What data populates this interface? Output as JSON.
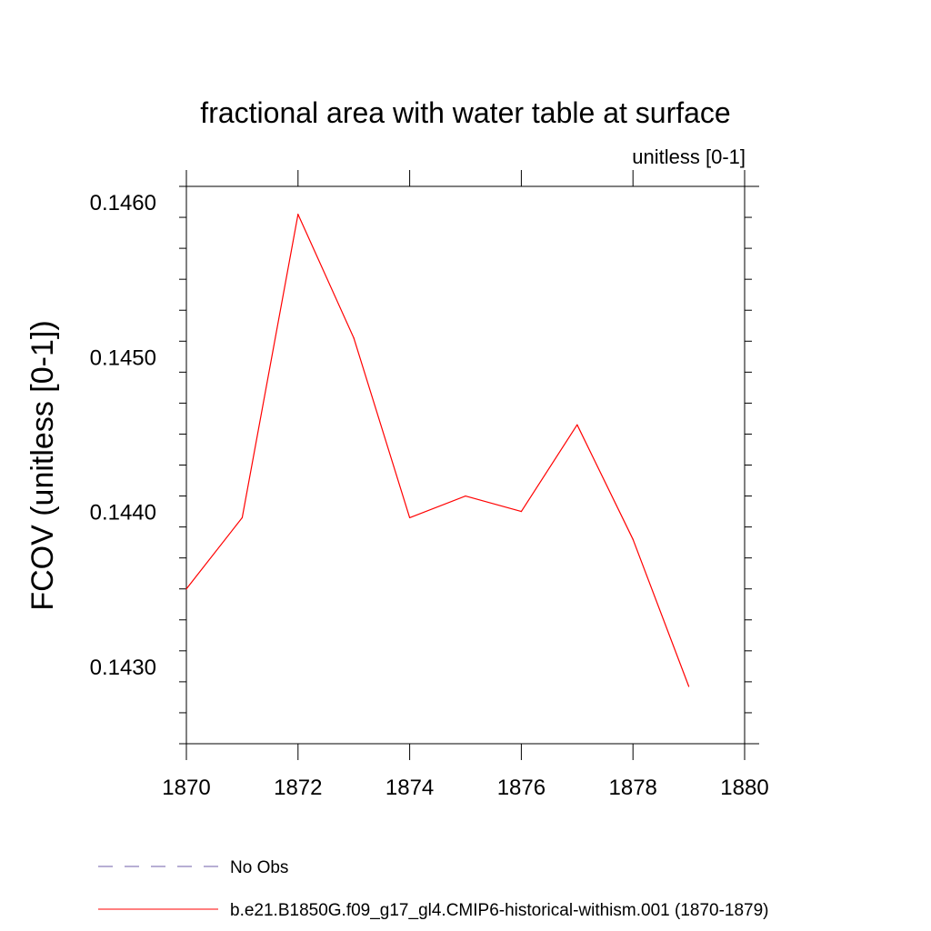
{
  "chart_data": {
    "type": "line",
    "title": "fractional area with water table at surface",
    "subtitle": "unitless [0-1]",
    "xlabel": "",
    "ylabel": "FCOV  (unitless [0-1])",
    "xlim": [
      1870,
      1880
    ],
    "ylim": [
      0.1425,
      0.1461
    ],
    "x_ticks": [
      "1870",
      "1872",
      "1874",
      "1876",
      "1878",
      "1880"
    ],
    "y_ticks": [
      "0.1430",
      "0.1440",
      "0.1450",
      "0.1460"
    ],
    "grid": false,
    "legend_position": "bottom",
    "legend": [
      {
        "label": "No Obs",
        "color": "#6f5fa8",
        "style": "dashed"
      },
      {
        "label": "b.e21.B1850G.f09_g17_gl4.CMIP6-historical-withism.001 (1870-1879)",
        "color": "#ff0000",
        "style": "solid"
      }
    ],
    "series": [
      {
        "name": "b.e21.B1850G.f09_g17_gl4.CMIP6-historical-withism.001 (1870-1879)",
        "color": "#ff0000",
        "x": [
          1870,
          1871,
          1872,
          1873,
          1874,
          1875,
          1876,
          1877,
          1878,
          1879
        ],
        "values": [
          0.1435,
          0.14396,
          0.14592,
          0.14512,
          0.14396,
          0.1441,
          0.144,
          0.14456,
          0.14382,
          0.14287
        ]
      }
    ]
  }
}
